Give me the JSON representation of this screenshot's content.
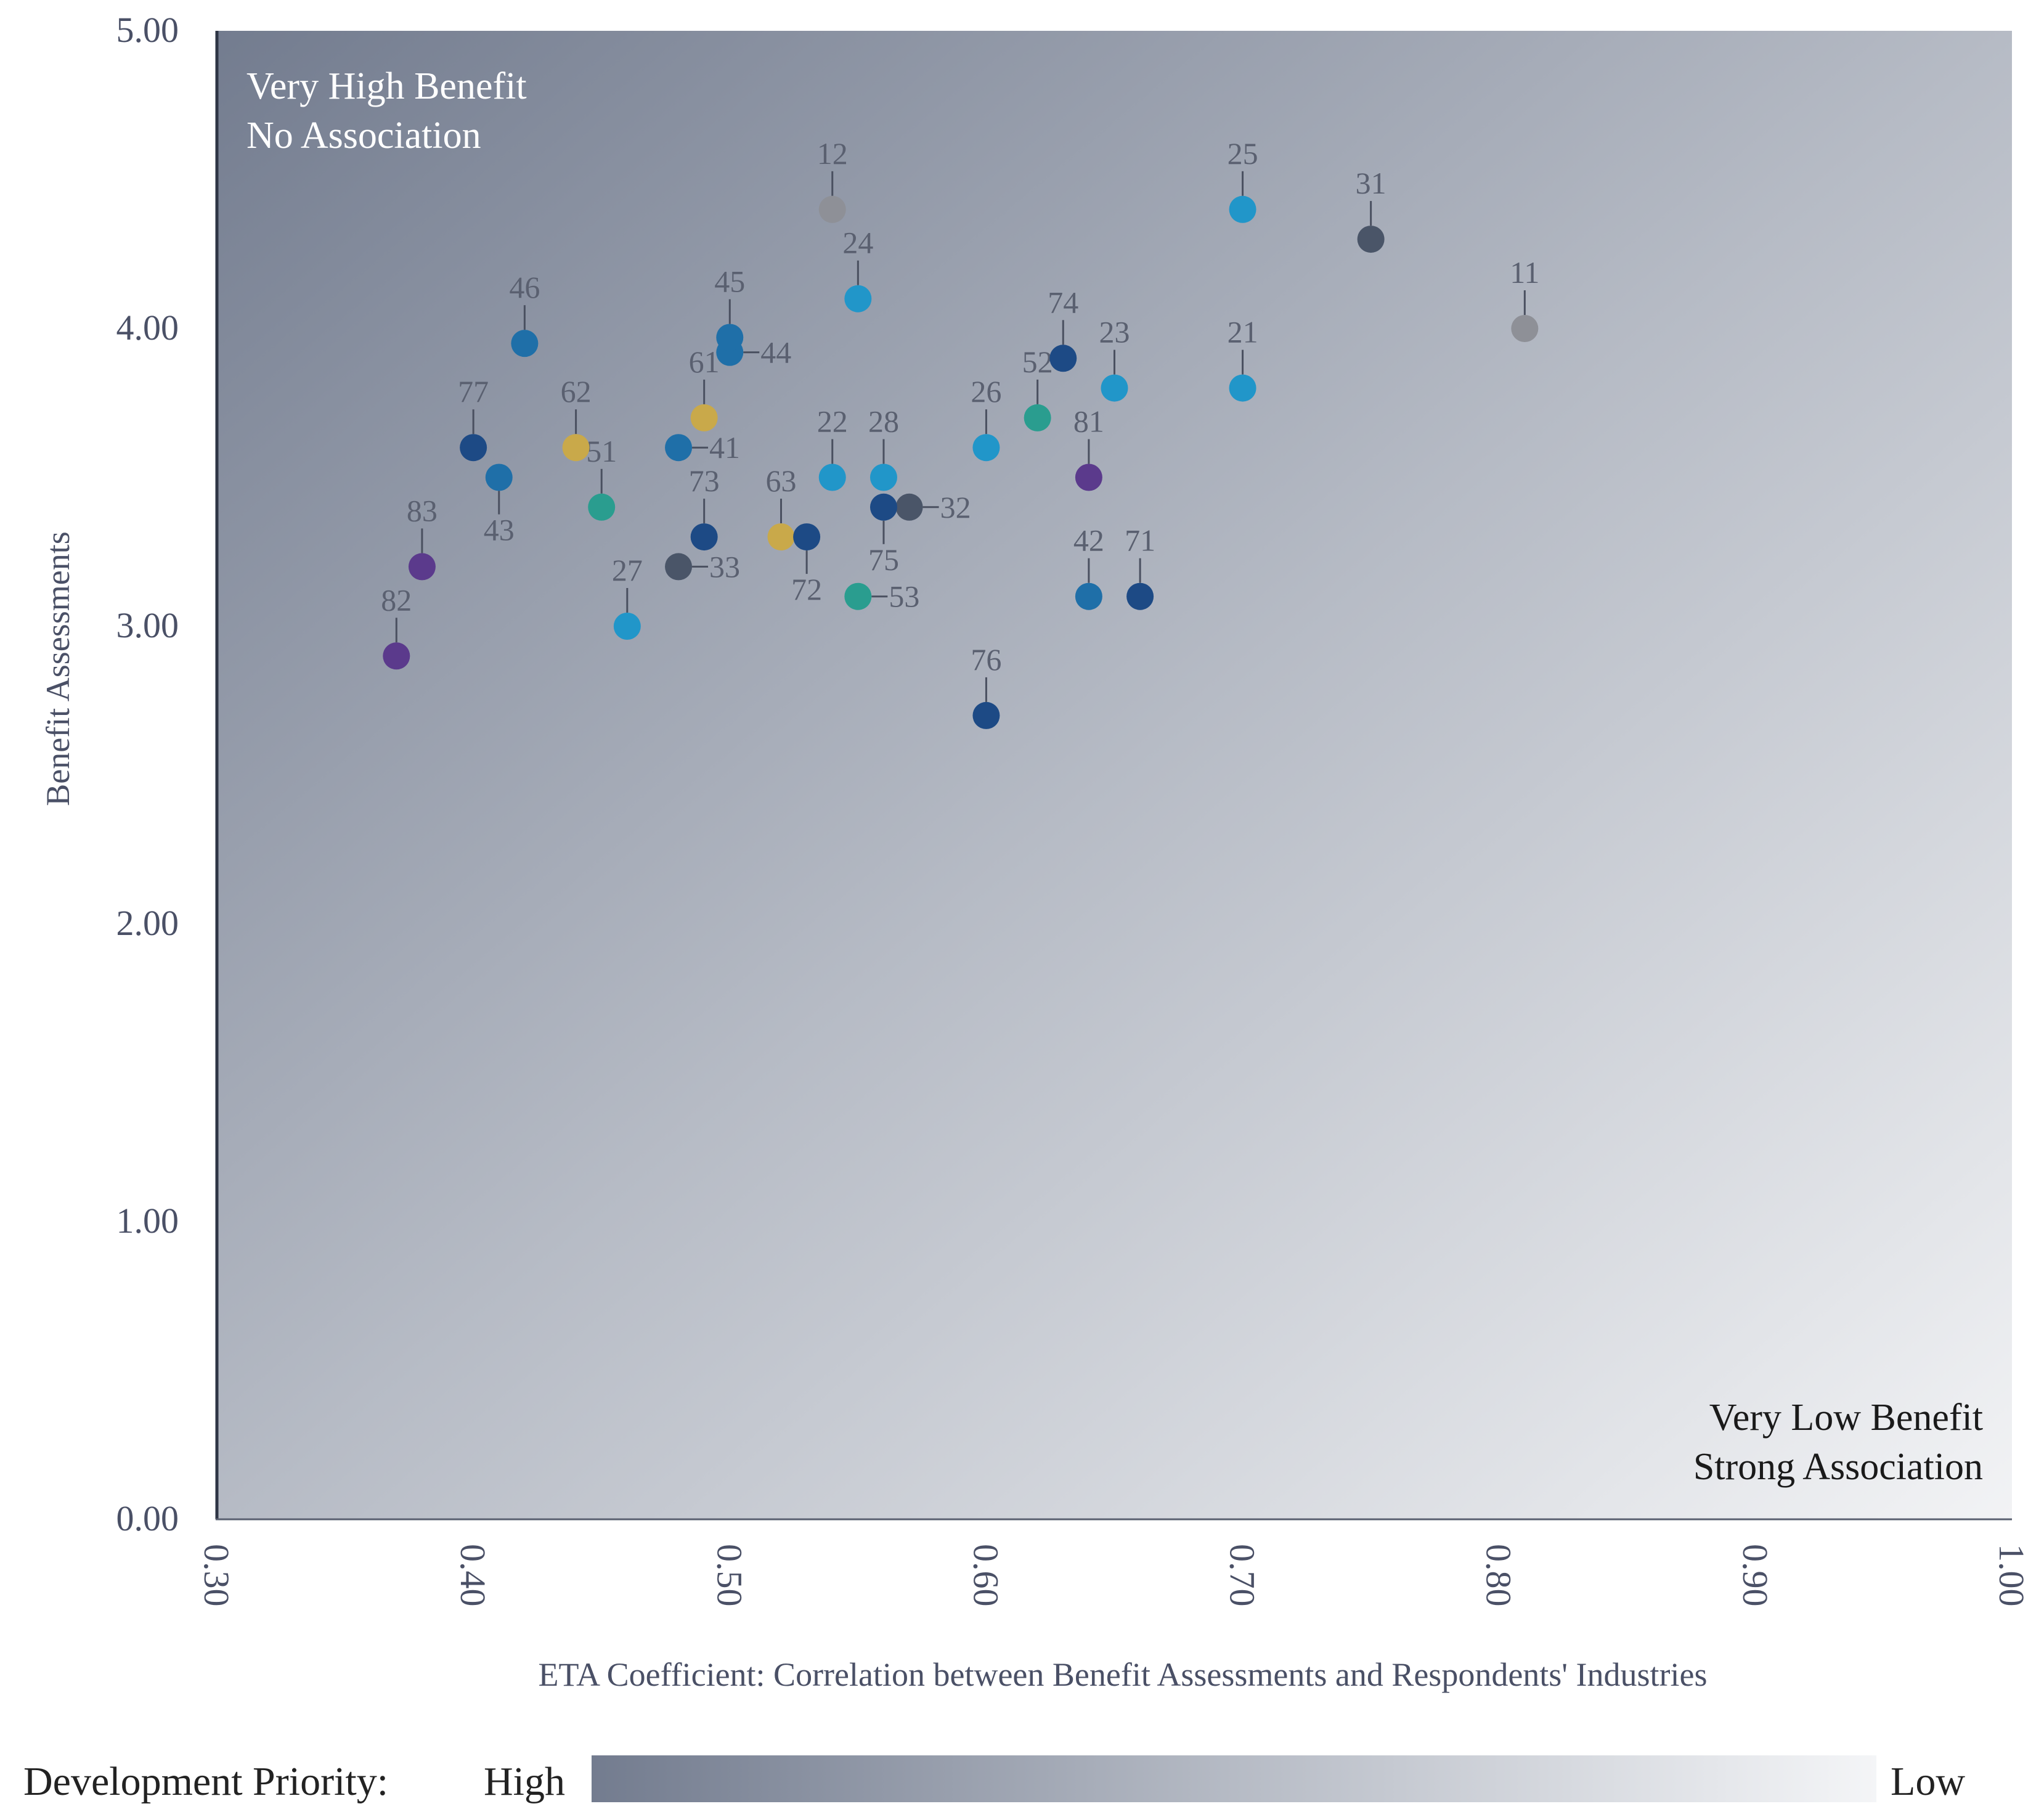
{
  "chart_data": {
    "type": "scatter",
    "xlabel": "ETA Coefficient:  Correlation  between  Benefit  Assessments  and  Respondents'  Industries",
    "ylabel": "Benefit  Assessments",
    "xlim": [
      0.3,
      1.0
    ],
    "ylim": [
      0.0,
      5.0
    ],
    "x_ticks": [
      "0.30",
      "0.40",
      "0.50",
      "0.60",
      "0.70",
      "0.80",
      "0.90",
      "1.00"
    ],
    "y_ticks": [
      "0.00",
      "1.00",
      "2.00",
      "3.00",
      "4.00",
      "5.00"
    ],
    "corner_top_left": [
      "Very High Benefit",
      "No Association"
    ],
    "corner_bottom_right": [
      "Very Low Benefit",
      "Strong Association"
    ],
    "legend": {
      "title": "Development Priority:",
      "high": "High",
      "low": "Low"
    },
    "colors": {
      "grey": "#8e9097",
      "slate": "#4a5568",
      "cyan": "#2196c9",
      "blue": "#1f6fa8",
      "navy": "#1d4a85",
      "teal": "#2a9d8f",
      "gold": "#c9a94a",
      "purple": "#5b3a8c"
    },
    "points": [
      {
        "label": "11",
        "x": 0.81,
        "y": 4.0,
        "color": "grey"
      },
      {
        "label": "12",
        "x": 0.54,
        "y": 4.4,
        "color": "grey"
      },
      {
        "label": "21",
        "x": 0.7,
        "y": 3.8,
        "color": "cyan"
      },
      {
        "label": "22",
        "x": 0.54,
        "y": 3.5,
        "color": "cyan"
      },
      {
        "label": "23",
        "x": 0.65,
        "y": 3.8,
        "color": "cyan"
      },
      {
        "label": "24",
        "x": 0.55,
        "y": 4.1,
        "color": "cyan"
      },
      {
        "label": "25",
        "x": 0.7,
        "y": 4.4,
        "color": "cyan"
      },
      {
        "label": "26",
        "x": 0.6,
        "y": 3.6,
        "color": "cyan"
      },
      {
        "label": "27",
        "x": 0.46,
        "y": 3.0,
        "color": "cyan"
      },
      {
        "label": "28",
        "x": 0.56,
        "y": 3.5,
        "color": "cyan"
      },
      {
        "label": "31",
        "x": 0.75,
        "y": 4.3,
        "color": "slate"
      },
      {
        "label": "32",
        "x": 0.57,
        "y": 3.4,
        "color": "slate"
      },
      {
        "label": "33",
        "x": 0.48,
        "y": 3.2,
        "color": "slate"
      },
      {
        "label": "41",
        "x": 0.48,
        "y": 3.6,
        "color": "blue"
      },
      {
        "label": "42",
        "x": 0.64,
        "y": 3.1,
        "color": "blue"
      },
      {
        "label": "43",
        "x": 0.41,
        "y": 3.5,
        "color": "blue"
      },
      {
        "label": "44",
        "x": 0.5,
        "y": 3.92,
        "color": "blue"
      },
      {
        "label": "45",
        "x": 0.5,
        "y": 3.97,
        "color": "blue"
      },
      {
        "label": "46",
        "x": 0.42,
        "y": 3.95,
        "color": "blue"
      },
      {
        "label": "51",
        "x": 0.45,
        "y": 3.4,
        "color": "teal"
      },
      {
        "label": "52",
        "x": 0.62,
        "y": 3.7,
        "color": "teal"
      },
      {
        "label": "53",
        "x": 0.55,
        "y": 3.1,
        "color": "teal"
      },
      {
        "label": "61",
        "x": 0.49,
        "y": 3.7,
        "color": "gold"
      },
      {
        "label": "62",
        "x": 0.44,
        "y": 3.6,
        "color": "gold"
      },
      {
        "label": "63",
        "x": 0.52,
        "y": 3.3,
        "color": "gold"
      },
      {
        "label": "71",
        "x": 0.66,
        "y": 3.1,
        "color": "navy"
      },
      {
        "label": "72",
        "x": 0.53,
        "y": 3.3,
        "color": "navy"
      },
      {
        "label": "73",
        "x": 0.49,
        "y": 3.3,
        "color": "navy"
      },
      {
        "label": "74",
        "x": 0.63,
        "y": 3.9,
        "color": "navy"
      },
      {
        "label": "75",
        "x": 0.56,
        "y": 3.4,
        "color": "navy"
      },
      {
        "label": "76",
        "x": 0.6,
        "y": 2.7,
        "color": "navy"
      },
      {
        "label": "77",
        "x": 0.4,
        "y": 3.6,
        "color": "navy"
      },
      {
        "label": "81",
        "x": 0.64,
        "y": 3.5,
        "color": "purple"
      },
      {
        "label": "82",
        "x": 0.37,
        "y": 2.9,
        "color": "purple"
      },
      {
        "label": "83",
        "x": 0.38,
        "y": 3.2,
        "color": "purple"
      }
    ]
  }
}
